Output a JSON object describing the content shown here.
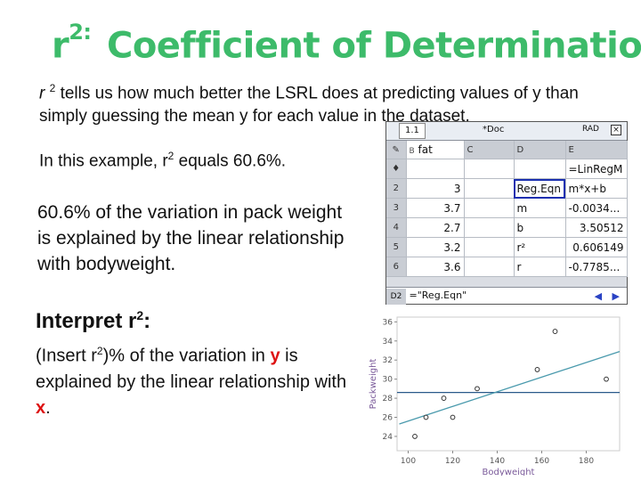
{
  "slide": {
    "title_sup": "2:",
    "title_r": "r",
    "title_text": "Coefficient of Determination",
    "intro_r": "r",
    "intro_sup": "2",
    "intro_text": " tells us how much better the LSRL does at predicting values of y than simply guessing the mean y for each value in the dataset.",
    "example_pre": "In this example, r",
    "example_sup": "2",
    "example_post": " equals 60.6%.",
    "explanation": "60.6% of the variation in pack weight is explained by the linear relationship with bodyweight.",
    "interpret_heading": "Interpret r",
    "interpret_sup": "2",
    "interpret_colon": ":",
    "interpret_1": "(Insert r",
    "interpret_sup2": "2",
    "interpret_2": ")% of the variation in ",
    "interpret_y": "y",
    "interpret_3": " is explained by the linear relationship with ",
    "interpret_x": "x",
    "interpret_4": "."
  },
  "calculator": {
    "tab": "1.1",
    "doc_title": "*Doc",
    "mode": "RAD",
    "close": "×",
    "col_headers": [
      "B",
      "fat",
      "C",
      "D",
      "E"
    ],
    "formula_row": "=LinRegM",
    "rows": [
      {
        "n": "2",
        "b": "3",
        "d": "Reg.Eqn",
        "e": "m*x+b"
      },
      {
        "n": "3",
        "b": "3.7",
        "d": "m",
        "e": "-0.0034..."
      },
      {
        "n": "4",
        "b": "2.7",
        "d": "b",
        "e": "3.50512"
      },
      {
        "n": "5",
        "b": "3.2",
        "d": "r²",
        "e": "0.606149"
      },
      {
        "n": "6",
        "b": "3.6",
        "d": "r",
        "e": "-0.7785..."
      }
    ],
    "cell_ref": "D2",
    "entry_line": "=\"Reg.Eqn\"",
    "nav_arrows": "◀ ▶"
  },
  "chart_data": {
    "type": "scatter",
    "xlabel": "Bodyweight",
    "ylabel": "Packweight",
    "xlim": [
      95,
      195
    ],
    "ylim": [
      22.5,
      36.5
    ],
    "x_ticks": [
      100,
      120,
      140,
      160,
      180
    ],
    "y_ticks": [
      24,
      26,
      28,
      30,
      32,
      34,
      36
    ],
    "points": [
      {
        "x": 103,
        "y": 24
      },
      {
        "x": 108,
        "y": 26
      },
      {
        "x": 116,
        "y": 28
      },
      {
        "x": 120,
        "y": 26
      },
      {
        "x": 131,
        "y": 29
      },
      {
        "x": 158,
        "y": 31
      },
      {
        "x": 166,
        "y": 35
      },
      {
        "x": 189,
        "y": 30
      }
    ],
    "regression_line": [
      {
        "x": 96,
        "y": 25.3
      },
      {
        "x": 195,
        "y": 32.9
      }
    ],
    "mean_line_y": 28.6,
    "colors": {
      "points": "#ffffff",
      "regression": "#4a9aad",
      "mean": "#2a5a8a"
    }
  }
}
